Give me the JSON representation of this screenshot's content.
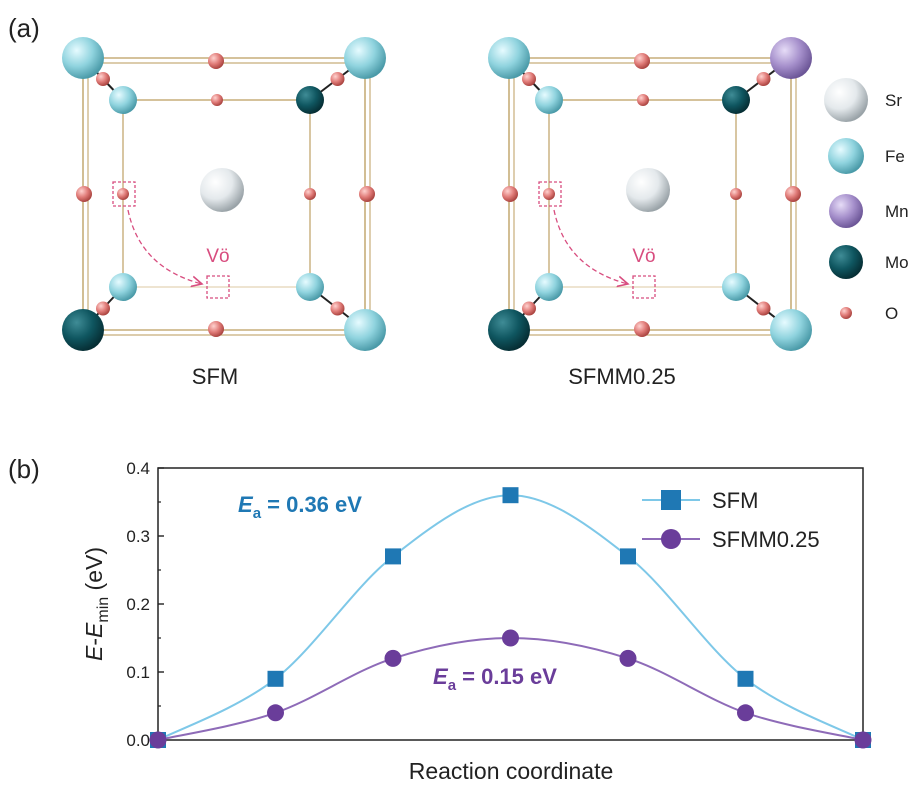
{
  "panel_a": {
    "label": "(a)",
    "structures": [
      {
        "name": "SFM",
        "corner_top_right": "Fe",
        "vacancy_label": "Vö"
      },
      {
        "name": "SFMM0.25",
        "corner_top_right": "Mn",
        "vacancy_label": "Vö"
      }
    ],
    "legend": [
      {
        "label": "Sr",
        "color": "#e4e9ec"
      },
      {
        "label": "Fe",
        "color": "#8fd3de"
      },
      {
        "label": "Mn",
        "color": "#a58fcb"
      },
      {
        "label": "Mo",
        "color": "#0f5660"
      },
      {
        "label": "O",
        "color": "#e07b78"
      }
    ],
    "colors": {
      "Sr": "#e4e9ec",
      "Fe": "#8fd3de",
      "Mn": "#a58fcb",
      "Mo": "#0f5660",
      "O": "#e07b78",
      "frame": "#c7ae7a",
      "vacancy": "#d84d7f"
    }
  },
  "panel_b": {
    "label": "(b)",
    "chart_data": {
      "type": "line",
      "xlabel": "Reaction  coordinate",
      "ylabel_main": "E",
      "ylabel_sep": "-",
      "ylabel_e": "E",
      "ylabel_sub": "min",
      "ylabel_unit": " (eV)",
      "ylim": [
        0.0,
        0.4
      ],
      "yticks": [
        "0.0",
        "0.1",
        "0.2",
        "0.3",
        "0.4"
      ],
      "ytick_values": [
        0.0,
        0.1,
        0.2,
        0.3,
        0.4
      ],
      "x": [
        0,
        1,
        2,
        3,
        4,
        5,
        6
      ],
      "xlim": [
        0,
        6
      ],
      "series": [
        {
          "name": "SFM",
          "marker": "square",
          "color": "#1f78b4",
          "line_color": "#7ec8e8",
          "values": [
            0.0,
            0.09,
            0.27,
            0.36,
            0.27,
            0.09,
            0.0
          ]
        },
        {
          "name": "SFMM0.25",
          "marker": "circle",
          "color": "#6a3d9a",
          "line_color": "#8e6bb8",
          "values": [
            0.0,
            0.04,
            0.12,
            0.15,
            0.12,
            0.04,
            0.0
          ]
        }
      ],
      "legend_position": "top-right",
      "annotations": [
        {
          "var": "E",
          "sub": "a",
          "text": " = 0.36 eV",
          "color": "#1f78b4"
        },
        {
          "var": "E",
          "sub": "a",
          "text": " = 0.15 eV",
          "color": "#6a3d9a"
        }
      ]
    }
  }
}
